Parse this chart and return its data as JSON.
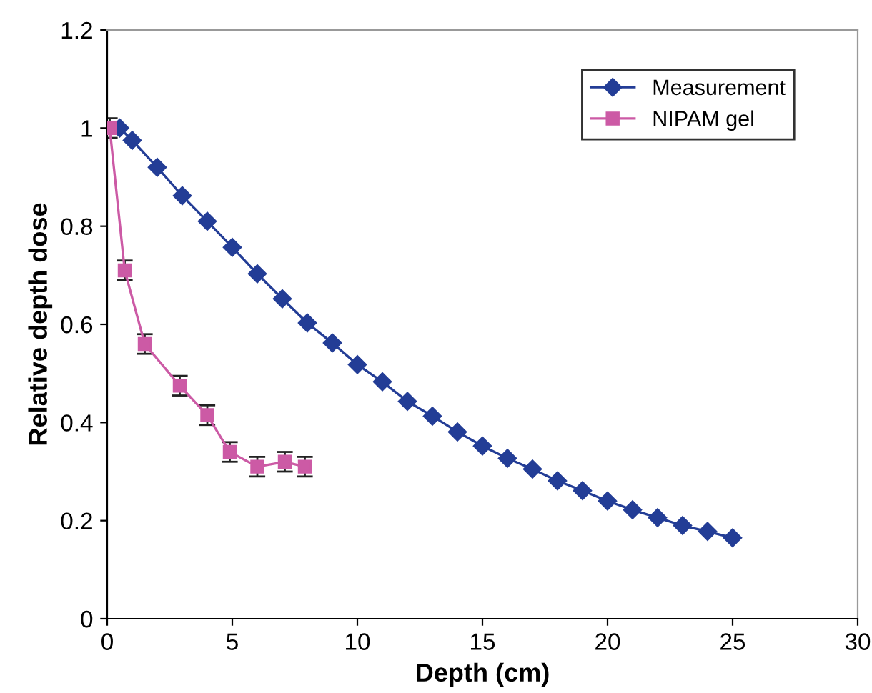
{
  "chart_data": {
    "type": "line",
    "xlabel": "Depth (cm)",
    "ylabel": "Relative depth dose",
    "xlim": [
      0,
      30
    ],
    "xticks": [
      0,
      5,
      10,
      15,
      20,
      25,
      30
    ],
    "ylim": [
      0,
      1.2
    ],
    "yticks": [
      0,
      0.2,
      0.4,
      0.6,
      0.8,
      1,
      1.2
    ],
    "grid": false,
    "legend": "top right",
    "series": [
      {
        "name": "Measurement",
        "color": "#233d96",
        "marker": "diamond",
        "x": [
          0.5,
          1,
          2,
          3,
          4,
          5,
          6,
          7,
          8,
          9,
          10,
          11,
          12,
          13,
          14,
          15,
          16,
          17,
          18,
          19,
          20,
          21,
          22,
          23,
          24,
          25
        ],
        "values": [
          1.0,
          0.975,
          0.92,
          0.862,
          0.81,
          0.757,
          0.703,
          0.652,
          0.603,
          0.562,
          0.518,
          0.483,
          0.443,
          0.413,
          0.381,
          0.352,
          0.327,
          0.305,
          0.281,
          0.261,
          0.24,
          0.222,
          0.206,
          0.19,
          0.178,
          0.165
        ]
      },
      {
        "name": "NIPAM gel",
        "color": "#cc5aa5",
        "marker": "square",
        "x": [
          0.1,
          0.7,
          1.5,
          2.9,
          4.0,
          4.9,
          6.0,
          7.1,
          7.9
        ],
        "values": [
          1.0,
          0.71,
          0.56,
          0.475,
          0.415,
          0.34,
          0.31,
          0.32,
          0.31
        ],
        "errors": [
          0.02,
          0.02,
          0.02,
          0.02,
          0.02,
          0.02,
          0.02,
          0.02,
          0.02
        ]
      }
    ]
  }
}
